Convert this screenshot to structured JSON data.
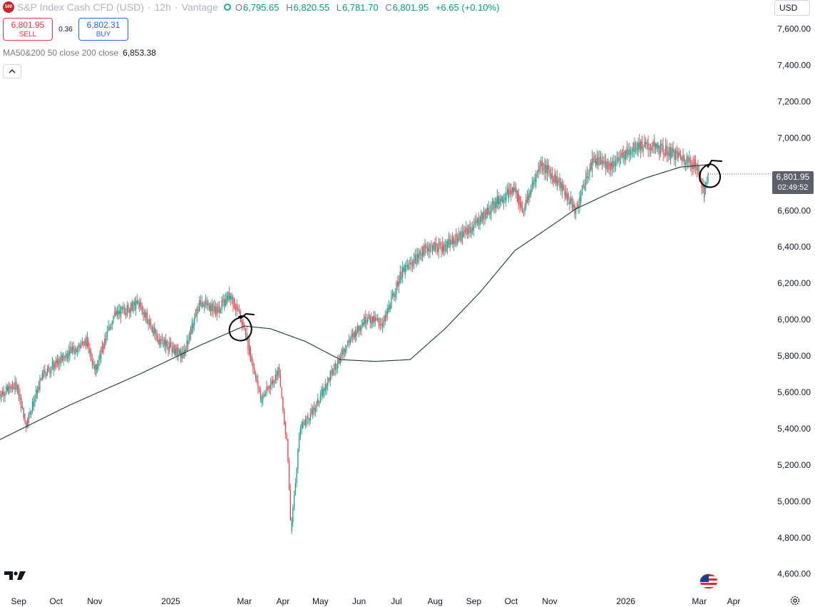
{
  "header": {
    "logo_text": "500",
    "symbol": "S&P Index Cash CFD (USD)",
    "interval": "12h",
    "broker": "Vantage",
    "ohlc": {
      "o_key": "O",
      "open": "6,795.65",
      "h_key": "H",
      "high": "6,820.55",
      "l_key": "L",
      "low": "6,781.70",
      "c_key": "C",
      "close": "6,801.95",
      "change": "+6.65 (+0.10%)"
    }
  },
  "trade": {
    "sell_price": "6,801.95",
    "sell_label": "SELL",
    "spread": "0.36",
    "buy_price": "6,802.31",
    "buy_label": "BUY"
  },
  "ma_legend": {
    "label": "MA50&200 50 close 200 close",
    "value": "6,853.38"
  },
  "currency": "USD",
  "last_price_tag": {
    "price": "6,801.95",
    "countdown": "02:49:52"
  },
  "colors": {
    "up": "#089981",
    "down": "#f23645",
    "ma": "#1b3a2f",
    "annotation": "#000000"
  },
  "icons": {
    "logo": "sp500-logo",
    "collapse": "chevron-up-icon",
    "brand": "tradingview-logo",
    "flag": "us-flag-icon",
    "settings": "gear-icon"
  },
  "chart_data": {
    "type": "candlestick",
    "y_axis_side": "right",
    "ylim": [
      4540,
      7720
    ],
    "y_ticks": [
      "7,600.00",
      "7,400.00",
      "7,200.00",
      "7,000.00",
      "6,800.00",
      "6,600.00",
      "6,400.00",
      "6,200.00",
      "6,000.00",
      "5,800.00",
      "5,600.00",
      "5,400.00",
      "5,200.00",
      "5,000.00",
      "4,800.00",
      "4,600.00"
    ],
    "x_ticks": [
      "Sep",
      "Oct",
      "Nov",
      "2025",
      "Mar",
      "Apr",
      "May",
      "Jun",
      "Jul",
      "Aug",
      "Sep",
      "Oct",
      "Nov",
      "2026",
      "Mar",
      "Apr"
    ],
    "price_path": [
      [
        "2024-08-17",
        5590
      ],
      [
        "2024-08-31",
        5640
      ],
      [
        "2024-09-07",
        5420
      ],
      [
        "2024-09-21",
        5700
      ],
      [
        "2024-10-12",
        5820
      ],
      [
        "2024-10-26",
        5880
      ],
      [
        "2024-11-02",
        5720
      ],
      [
        "2024-11-16",
        6020
      ],
      [
        "2024-12-07",
        6090
      ],
      [
        "2024-12-21",
        5900
      ],
      [
        "2025-01-11",
        5800
      ],
      [
        "2025-01-25",
        6100
      ],
      [
        "2025-02-08",
        6050
      ],
      [
        "2025-02-18",
        6140
      ],
      [
        "2025-03-01",
        5960
      ],
      [
        "2025-03-15",
        5560
      ],
      [
        "2025-03-29",
        5720
      ],
      [
        "2025-04-05",
        5300
      ],
      [
        "2025-04-08",
        4830
      ],
      [
        "2025-04-15",
        5400
      ],
      [
        "2025-04-26",
        5500
      ],
      [
        "2025-05-10",
        5700
      ],
      [
        "2025-05-24",
        5880
      ],
      [
        "2025-06-07",
        6010
      ],
      [
        "2025-06-21",
        5980
      ],
      [
        "2025-07-05",
        6250
      ],
      [
        "2025-07-26",
        6400
      ],
      [
        "2025-08-09",
        6400
      ],
      [
        "2025-08-30",
        6500
      ],
      [
        "2025-09-20",
        6650
      ],
      [
        "2025-10-04",
        6720
      ],
      [
        "2025-10-11",
        6600
      ],
      [
        "2025-10-25",
        6860
      ],
      [
        "2025-11-08",
        6760
      ],
      [
        "2025-11-22",
        6600
      ],
      [
        "2025-12-06",
        6880
      ],
      [
        "2025-12-20",
        6850
      ],
      [
        "2026-01-10",
        6960
      ],
      [
        "2026-01-24",
        6950
      ],
      [
        "2026-02-14",
        6900
      ],
      [
        "2026-02-28",
        6840
      ],
      [
        "2026-03-05",
        6690
      ],
      [
        "2026-03-08",
        6802
      ]
    ],
    "ma200_path": [
      [
        "2024-08-17",
        5340
      ],
      [
        "2024-10-12",
        5530
      ],
      [
        "2024-12-07",
        5700
      ],
      [
        "2025-01-25",
        5860
      ],
      [
        "2025-03-01",
        5965
      ],
      [
        "2025-03-22",
        5950
      ],
      [
        "2025-04-19",
        5880
      ],
      [
        "2025-05-17",
        5780
      ],
      [
        "2025-06-14",
        5770
      ],
      [
        "2025-07-12",
        5780
      ],
      [
        "2025-08-09",
        5950
      ],
      [
        "2025-09-06",
        6150
      ],
      [
        "2025-10-04",
        6380
      ],
      [
        "2025-11-01",
        6510
      ],
      [
        "2025-11-22",
        6610
      ],
      [
        "2025-12-20",
        6700
      ],
      [
        "2026-01-17",
        6780
      ],
      [
        "2026-02-14",
        6840
      ],
      [
        "2026-03-08",
        6853
      ]
    ],
    "last_price": 6801.95,
    "ma200_last": 6853.38
  }
}
